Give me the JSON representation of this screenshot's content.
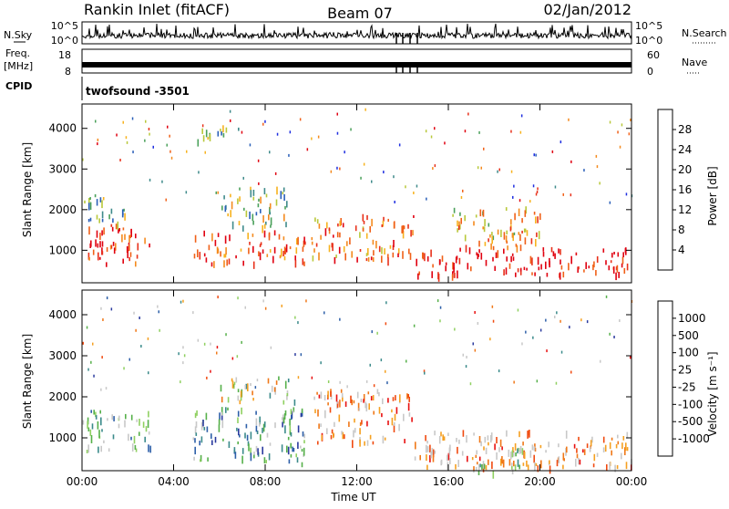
{
  "header": {
    "station": "Rankin Inlet (fitACF)",
    "beam": "Beam 07",
    "date": "02/Jan/2012"
  },
  "strips": {
    "nsky_label": "N.Sky",
    "nsearch_label": "N.Search",
    "count_ticks": [
      "10^5",
      "10^0"
    ],
    "freq_label": "Freq.",
    "freq_unit": "[MHz]",
    "freq_ticks": [
      "18",
      "8"
    ],
    "nave_label": "Nave",
    "nave_ticks": [
      "60",
      "0"
    ],
    "cpid_label": "CPID",
    "cpid_value": "twofsound -3501"
  },
  "chart_data": [
    {
      "type": "heatmap",
      "name": "power",
      "ylabel": "Slant Range [km]",
      "xlabel": "",
      "x_ticks": [
        "00:00",
        "04:00",
        "08:00",
        "12:00",
        "16:00",
        "20:00",
        "00:00"
      ],
      "xlim_hours": [
        0,
        24
      ],
      "ylim": [
        200,
        4600
      ],
      "y_ticks": [
        1000,
        2000,
        3000,
        4000
      ],
      "colorbar": {
        "label": "Power [dB]",
        "ticks": [
          4,
          8,
          12,
          16,
          20,
          24,
          28
        ],
        "colors": [
          "#1e2ee0",
          "#2a5fb8",
          "#3e8a8a",
          "#4aa05a",
          "#b8c83a",
          "#f7b21e",
          "#f48a1e",
          "#f06018",
          "#e8301a",
          "#e00010"
        ]
      },
      "regions": [
        {
          "t0": 0.0,
          "t1": 3.0,
          "r0": 700,
          "r1": 1700,
          "level": 0.85
        },
        {
          "t0": 4.8,
          "t1": 9.8,
          "r0": 700,
          "r1": 1500,
          "level": 0.8
        },
        {
          "t0": 10.0,
          "t1": 14.5,
          "r0": 800,
          "r1": 1900,
          "level": 0.7
        },
        {
          "t0": 14.5,
          "t1": 24.0,
          "r0": 400,
          "r1": 1100,
          "level": 0.95
        },
        {
          "t0": 16.0,
          "t1": 20.0,
          "r0": 1100,
          "r1": 2100,
          "level": 0.6
        },
        {
          "t0": 0.0,
          "t1": 2.0,
          "r0": 1700,
          "r1": 2400,
          "level": 0.3
        },
        {
          "t0": 6.0,
          "t1": 9.0,
          "r0": 1600,
          "r1": 2600,
          "level": 0.4
        },
        {
          "t0": 5.0,
          "t1": 7.0,
          "r0": 3700,
          "r1": 4100,
          "level": 0.3
        }
      ]
    },
    {
      "type": "heatmap",
      "name": "velocity",
      "ylabel": "Slant Range [km]",
      "xlabel": "Time UT",
      "x_ticks": [
        "00:00",
        "04:00",
        "08:00",
        "12:00",
        "16:00",
        "20:00",
        "00:00"
      ],
      "xlim_hours": [
        0,
        24
      ],
      "ylim": [
        200,
        4600
      ],
      "y_ticks": [
        1000,
        2000,
        3000,
        4000
      ],
      "colorbar": {
        "label": "Velocity [m s⁻¹]",
        "ticks": [
          "1000",
          "500",
          "100",
          "25",
          "-25",
          "-100",
          "-500",
          "-1000"
        ],
        "colors": [
          "#2a3a9e",
          "#2d5fa8",
          "#3a8a8a",
          "#56b04a",
          "#8fd060",
          "#c8c8c8",
          "#c8c8c8",
          "#f5a020",
          "#f07818",
          "#f04a10",
          "#e81010"
        ]
      },
      "regions": [
        {
          "t0": 0.0,
          "t1": 3.0,
          "r0": 700,
          "r1": 1700,
          "level": 0.35
        },
        {
          "t0": 4.8,
          "t1": 9.8,
          "r0": 400,
          "r1": 1800,
          "level": 0.25
        },
        {
          "t0": 10.0,
          "t1": 14.5,
          "r0": 900,
          "r1": 2200,
          "level": 0.75
        },
        {
          "t0": 14.5,
          "t1": 24.0,
          "r0": 300,
          "r1": 1200,
          "level": 0.7
        },
        {
          "t0": 17.0,
          "t1": 20.0,
          "r0": 200,
          "r1": 900,
          "level": 0.5
        },
        {
          "t0": 6.0,
          "t1": 9.5,
          "r0": 1900,
          "r1": 2500,
          "level": 0.5
        }
      ]
    }
  ]
}
